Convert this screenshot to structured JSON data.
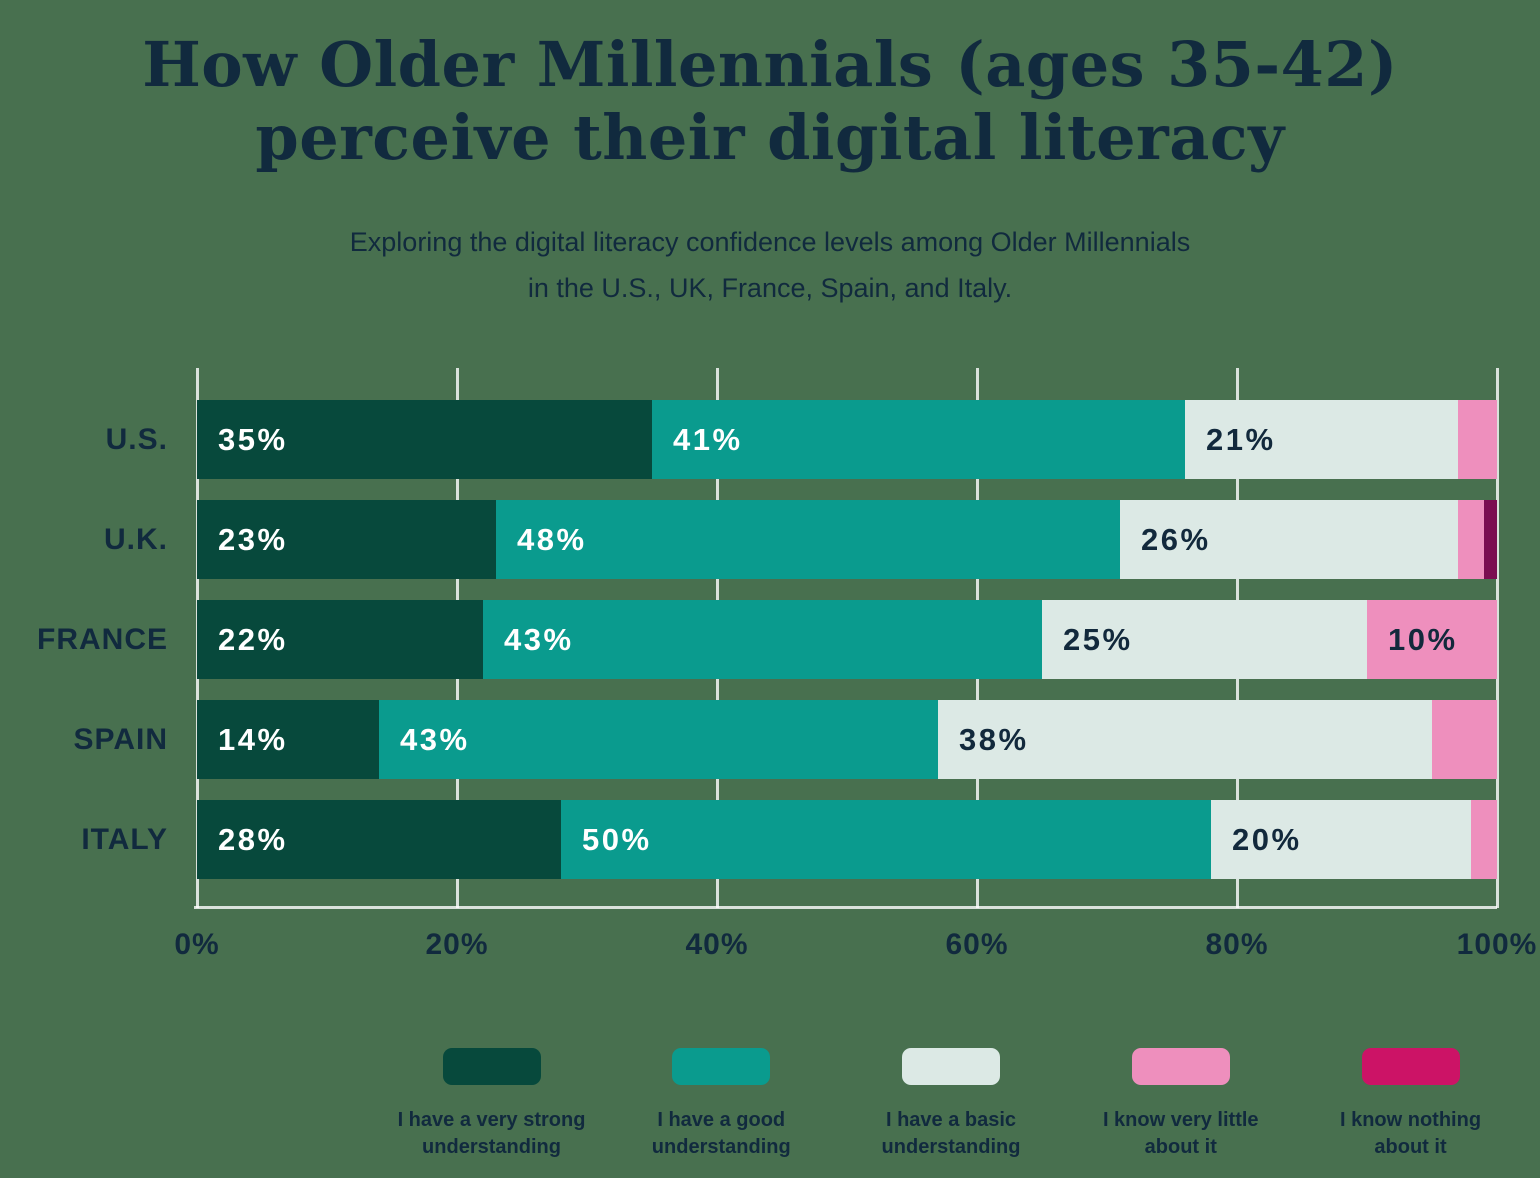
{
  "colors": {
    "background": "#48704F",
    "text_navy": "#112A3E",
    "gridline": "rgba(255,255,255,0.8)",
    "bar_label_light": "#FFFFFF"
  },
  "header": {
    "title_line1": "How Older Millennials (ages 35-42)",
    "title_line2": "perceive their digital literacy",
    "subtitle_line1": "Exploring the digital literacy confidence levels among Older Millennials",
    "subtitle_line2": "in the U.S., UK, France, Spain, and Italy."
  },
  "chart_data": {
    "type": "bar",
    "orientation": "horizontal-stacked",
    "title": "How Older Millennials (ages 35-42) perceive their digital literacy",
    "subtitle": "Exploring the digital literacy confidence levels among Older Millennials in the U.S., UK, France, Spain, and Italy.",
    "categories": [
      "U.S.",
      "U.K.",
      "FRANCE",
      "SPAIN",
      "ITALY"
    ],
    "series": [
      {
        "key": "very-strong-understanding",
        "name": "I have a very strong understanding",
        "legend_lines": [
          "I have a very strong",
          "understanding"
        ],
        "color": "#07493C",
        "label_color": "#FFFFFF",
        "values": [
          35,
          23,
          22,
          14,
          28
        ]
      },
      {
        "key": "good-understanding",
        "name": "I have a good understanding",
        "legend_lines": [
          "I have a good",
          "understanding"
        ],
        "color": "#0A9B8E",
        "label_color": "#FFFFFF",
        "values": [
          41,
          48,
          43,
          43,
          50
        ]
      },
      {
        "key": "basic-understanding",
        "name": "I have a basic understanding",
        "legend_lines": [
          "I have a basic",
          "understanding"
        ],
        "color": "#DCE9E5",
        "label_color": "#12293C",
        "values": [
          21,
          26,
          25,
          38,
          20
        ]
      },
      {
        "key": "know-very-little",
        "name": "I know very little about it",
        "legend_lines": [
          "I know very little",
          "about it"
        ],
        "color": "#EE8FBD",
        "label_color": "#12293C",
        "values": [
          3,
          2,
          10,
          5,
          2
        ]
      },
      {
        "key": "know-nothing",
        "name": "I know nothing about it",
        "legend_lines": [
          "I know nothing",
          "about it"
        ],
        "color": "#7B0D51",
        "legend_color": "#CC1366",
        "label_color": "#FFFFFF",
        "values": [
          0,
          1,
          0,
          0,
          0
        ]
      }
    ],
    "value_suffix": "%",
    "label_min_value": 10,
    "x_ticks": [
      "0%",
      "20%",
      "40%",
      "60%",
      "80%",
      "100%"
    ],
    "xlim": [
      0,
      100
    ],
    "grid": true,
    "legend_position": "bottom"
  }
}
